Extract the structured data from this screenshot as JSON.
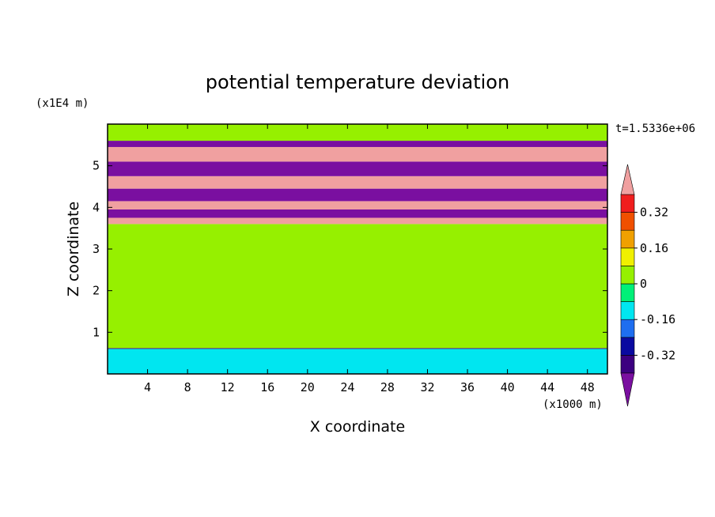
{
  "chart_data": {
    "type": "heatmap",
    "title": "potential temperature deviation",
    "xlabel": "X coordinate",
    "ylabel": "Z coordinate",
    "x_unit": "(x1000 m)",
    "y_unit": "(x1E4 m)",
    "time_label": "t=1.5336e+06",
    "xlim": [
      0,
      50
    ],
    "ylim": [
      0,
      6
    ],
    "x_ticks": [
      "4",
      "8",
      "12",
      "16",
      "20",
      "24",
      "28",
      "32",
      "36",
      "40",
      "44",
      "48"
    ],
    "y_ticks": [
      "1",
      "2",
      "3",
      "4",
      "5"
    ],
    "colorbar": {
      "labels": [
        "0.32",
        "0.16",
        "0",
        "-0.16",
        "-0.32"
      ],
      "label_values": [
        0.32,
        0.16,
        0,
        -0.16,
        -0.32
      ],
      "levels": [
        -0.4,
        -0.32,
        -0.24,
        -0.16,
        -0.08,
        0,
        0.08,
        0.16,
        0.24,
        0.32,
        0.4
      ],
      "colors": [
        "#7a0fa0",
        "#3c0080",
        "#0a0aa0",
        "#1e6ef0",
        "#00e6f0",
        "#00f078",
        "#96f000",
        "#f0f000",
        "#f0a000",
        "#f05000",
        "#f01e1e",
        "#f0a0a0"
      ],
      "extend": "both"
    },
    "bands": [
      {
        "z": [
          0.0,
          0.6
        ],
        "value": -0.12
      },
      {
        "z": [
          0.6,
          0.62
        ],
        "value": -0.35
      },
      {
        "z": [
          0.62,
          3.6
        ],
        "value": 0.04
      },
      {
        "z": [
          3.6,
          3.75
        ],
        "value": 0.45
      },
      {
        "z": [
          3.75,
          3.95
        ],
        "value": -0.42
      },
      {
        "z": [
          3.95,
          4.15
        ],
        "value": 0.45
      },
      {
        "z": [
          4.15,
          4.45
        ],
        "value": -0.42
      },
      {
        "z": [
          4.45,
          4.75
        ],
        "value": 0.45
      },
      {
        "z": [
          4.75,
          5.1
        ],
        "value": -0.42
      },
      {
        "z": [
          5.1,
          5.45
        ],
        "value": 0.45
      },
      {
        "z": [
          5.45,
          5.6
        ],
        "value": -0.42
      },
      {
        "z": [
          5.6,
          6.0
        ],
        "value": 0.04
      }
    ]
  }
}
